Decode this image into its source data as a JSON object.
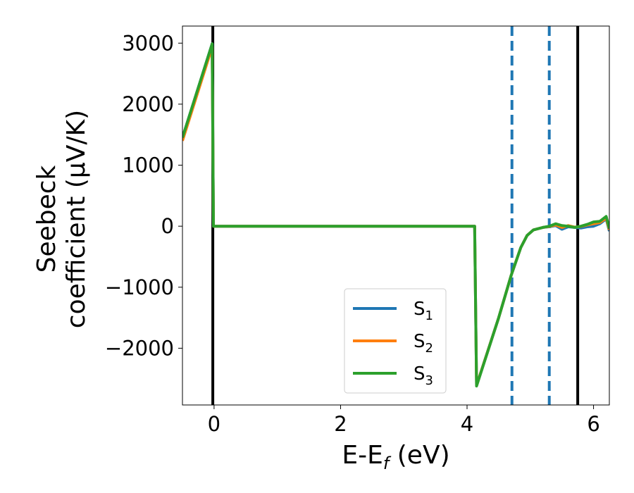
{
  "chart_data": {
    "type": "line",
    "xlabel_main": "E-E",
    "xlabel_sub": "f",
    "xlabel_unit": " (eV)",
    "ylabel_line1": "Seebeck",
    "ylabel_line2": "coefficient  (μV/K)",
    "xlim": [
      -0.5,
      6.25
    ],
    "ylim": [
      -2930,
      3280
    ],
    "xticks": [
      0,
      2,
      4,
      6
    ],
    "xtick_labels": [
      "0",
      "2",
      "4",
      "6"
    ],
    "yticks": [
      -2000,
      -1000,
      0,
      1000,
      2000,
      3000
    ],
    "ytick_labels": [
      "−2000",
      "−1000",
      "0",
      "1000",
      "2000",
      "3000"
    ],
    "vlines": [
      {
        "x": -0.02,
        "color": "#000000",
        "style": "solid"
      },
      {
        "x": 4.71,
        "color": "#1f77b4",
        "style": "dashed"
      },
      {
        "x": 5.3,
        "color": "#1f77b4",
        "style": "dashed"
      },
      {
        "x": 5.75,
        "color": "#000000",
        "style": "solid"
      }
    ],
    "legend_position": "lower-center-right",
    "series": [
      {
        "name": "S",
        "sub": "1",
        "color": "#1f77b4",
        "points": [
          [
            -0.5,
            1450
          ],
          [
            -0.03,
            2990
          ],
          [
            -0.01,
            0
          ],
          [
            4.12,
            0
          ],
          [
            4.15,
            -2610
          ],
          [
            4.5,
            -1500
          ],
          [
            4.7,
            -800
          ],
          [
            4.85,
            -350
          ],
          [
            4.95,
            -150
          ],
          [
            5.05,
            -60
          ],
          [
            5.2,
            -20
          ],
          [
            5.3,
            -10
          ],
          [
            5.4,
            10
          ],
          [
            5.5,
            -50
          ],
          [
            5.6,
            -10
          ],
          [
            5.7,
            -20
          ],
          [
            5.8,
            -30
          ],
          [
            5.9,
            -10
          ],
          [
            6.0,
            0
          ],
          [
            6.1,
            40
          ],
          [
            6.2,
            120
          ],
          [
            6.25,
            -80
          ]
        ]
      },
      {
        "name": "S",
        "sub": "2",
        "color": "#ff7f0e",
        "points": [
          [
            -0.5,
            1400
          ],
          [
            -0.03,
            2940
          ],
          [
            -0.01,
            0
          ],
          [
            4.12,
            0
          ],
          [
            4.15,
            -2610
          ],
          [
            4.5,
            -1500
          ],
          [
            4.7,
            -800
          ],
          [
            4.85,
            -350
          ],
          [
            4.95,
            -150
          ],
          [
            5.05,
            -60
          ],
          [
            5.2,
            -20
          ],
          [
            5.3,
            -5
          ],
          [
            5.4,
            20
          ],
          [
            5.5,
            -20
          ],
          [
            5.6,
            10
          ],
          [
            5.7,
            -15
          ],
          [
            5.8,
            -5
          ],
          [
            5.9,
            20
          ],
          [
            6.0,
            40
          ],
          [
            6.1,
            60
          ],
          [
            6.2,
            130
          ],
          [
            6.25,
            -60
          ]
        ]
      },
      {
        "name": "S",
        "sub": "3",
        "color": "#2ca02c",
        "points": [
          [
            -0.5,
            1450
          ],
          [
            -0.03,
            2990
          ],
          [
            -0.01,
            0
          ],
          [
            4.12,
            0
          ],
          [
            4.15,
            -2620
          ],
          [
            4.5,
            -1500
          ],
          [
            4.7,
            -800
          ],
          [
            4.85,
            -350
          ],
          [
            4.95,
            -150
          ],
          [
            5.05,
            -60
          ],
          [
            5.2,
            -20
          ],
          [
            5.3,
            0
          ],
          [
            5.4,
            40
          ],
          [
            5.5,
            10
          ],
          [
            5.6,
            0
          ],
          [
            5.7,
            -20
          ],
          [
            5.8,
            0
          ],
          [
            5.9,
            30
          ],
          [
            6.0,
            70
          ],
          [
            6.1,
            80
          ],
          [
            6.2,
            160
          ],
          [
            6.25,
            -40
          ]
        ]
      }
    ]
  }
}
